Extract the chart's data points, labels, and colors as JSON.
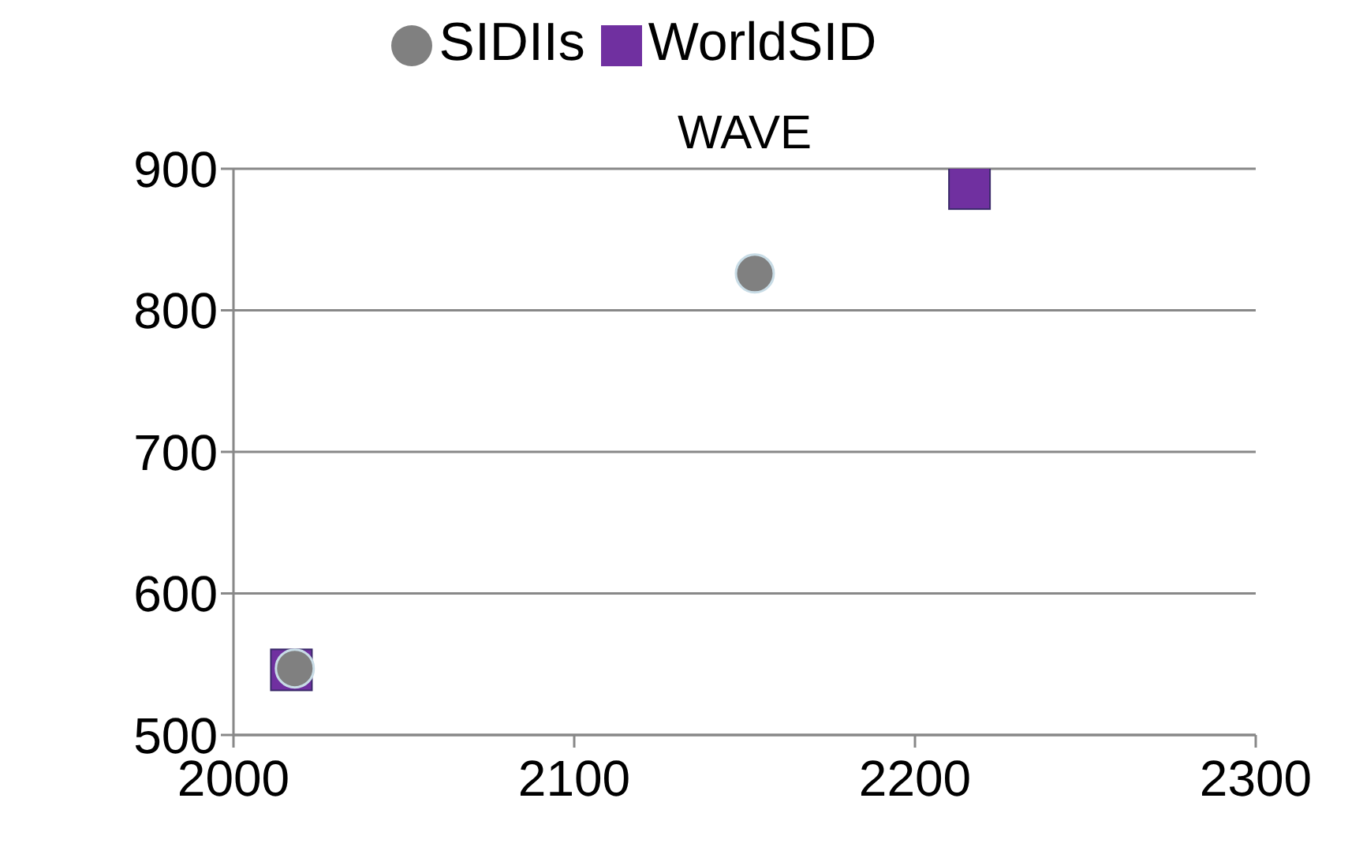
{
  "chart_data": {
    "type": "scatter",
    "title": "WAVE",
    "series": [
      {
        "name": "SIDIIs",
        "color": "#808080",
        "marker": "circle",
        "x": [
          2018,
          2153
        ],
        "values": [
          547,
          826
        ]
      },
      {
        "name": "WorldSID",
        "color": "#7030a0",
        "marker": "square",
        "x": [
          2017,
          2216
        ],
        "values": [
          546,
          886
        ]
      }
    ],
    "xlim": [
      2000,
      2300
    ],
    "xticks": [
      2000,
      2100,
      2200,
      2300
    ],
    "ylim": [
      500,
      900
    ],
    "yticks": [
      500,
      600,
      700,
      800,
      900
    ],
    "grid": "y",
    "legend": "top"
  }
}
